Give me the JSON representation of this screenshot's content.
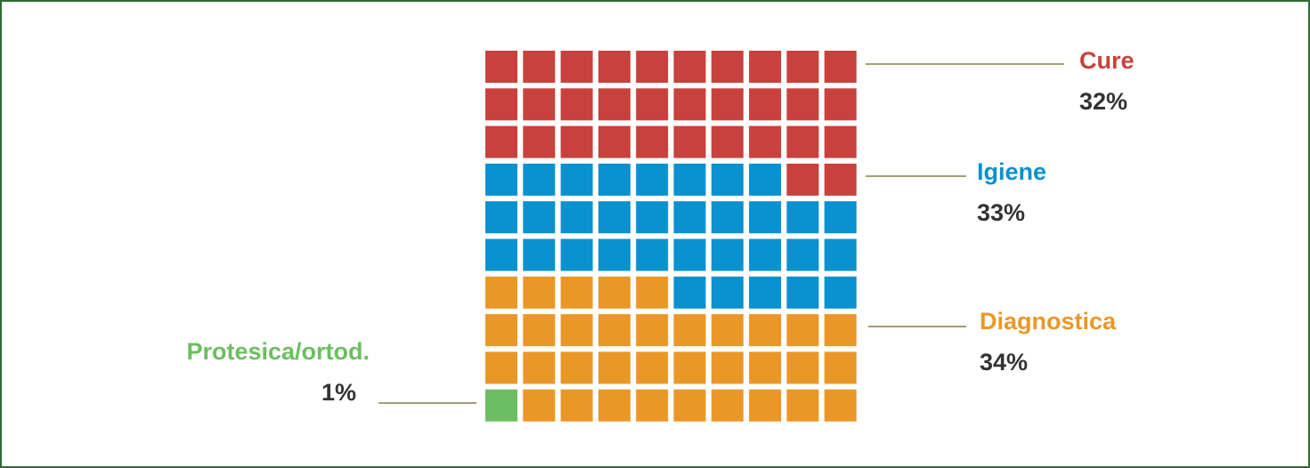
{
  "chart_data": {
    "type": "waffle",
    "categories": [
      "Cure",
      "Igiene",
      "Diagnostica",
      "Protesica/ortod."
    ],
    "values": [
      32,
      33,
      34,
      1
    ],
    "value_labels": [
      "32%",
      "33%",
      "34%",
      "1%"
    ],
    "colors": [
      "#c8413c",
      "#0991d0",
      "#eb9727",
      "#6cbf60"
    ]
  }
}
